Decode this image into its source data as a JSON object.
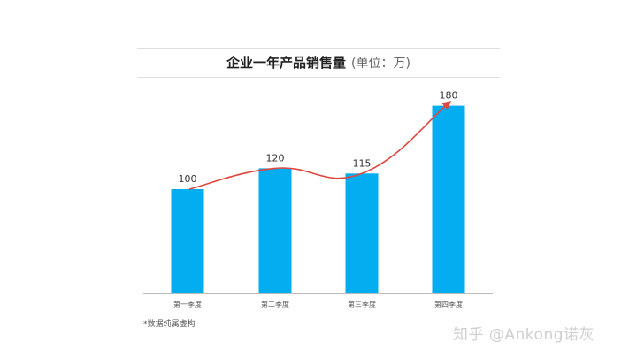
{
  "chart_data": {
    "type": "bar",
    "title": "企业一年产品销售量",
    "unit": "(单位：万)",
    "categories": [
      "第一季度",
      "第二季度",
      "第三季度",
      "第四季度"
    ],
    "values": [
      100,
      120,
      115,
      180
    ],
    "data_labels": [
      "100",
      "120",
      "115",
      "180"
    ],
    "ylim": [
      0,
      200
    ],
    "grid": false,
    "legend": false,
    "overlay": "trend-line-with-arrow",
    "colors": {
      "bar": "#03adf0",
      "trend": "#e0463f",
      "axis": "#bbbbbb"
    }
  },
  "footnote": "*数据纯属虚构",
  "watermark": "知乎 @Ankong诺灰"
}
